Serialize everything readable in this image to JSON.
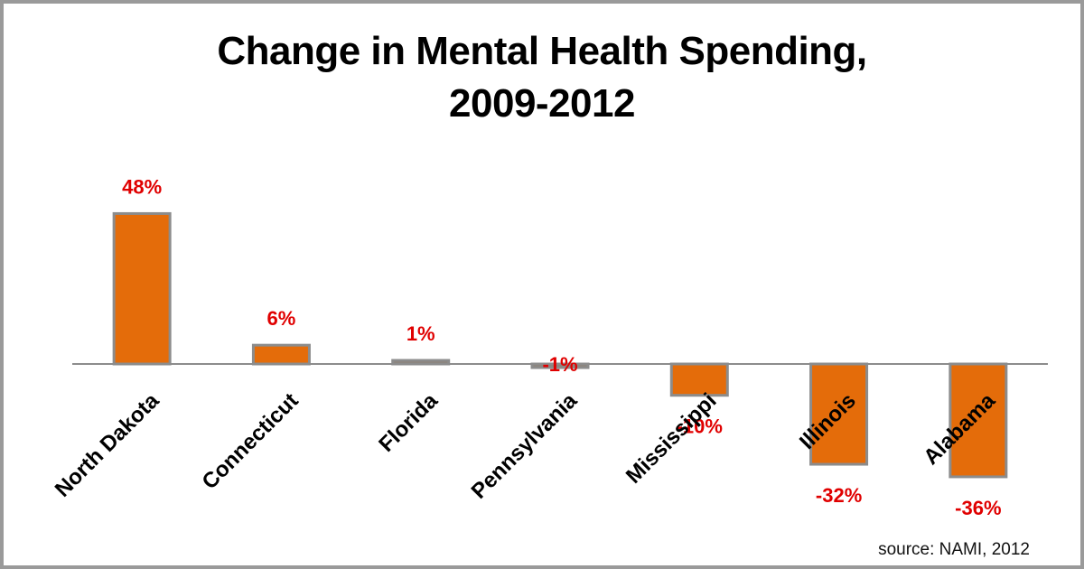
{
  "chart_data": {
    "type": "bar",
    "title_line1": "Change in Mental Health Spending,",
    "title_line2": "2009-2012",
    "xlabel": "",
    "ylabel": "",
    "ylim": [
      -40,
      50
    ],
    "categories": [
      "North Dakota",
      "Connecticut",
      "Florida",
      "Pennsylvania",
      "Mississippi",
      "Illinois",
      "Alabama"
    ],
    "values": [
      48,
      6,
      1,
      -1,
      -10,
      -32,
      -36
    ],
    "data_labels": [
      "48%",
      "6%",
      "1%",
      "-1%",
      "-10%",
      "-32%",
      "-36%"
    ],
    "grid": false,
    "legend": "none",
    "source": "source: NAMI, 2012",
    "bar_color": "#e46c0a",
    "label_color": "#e00000"
  }
}
